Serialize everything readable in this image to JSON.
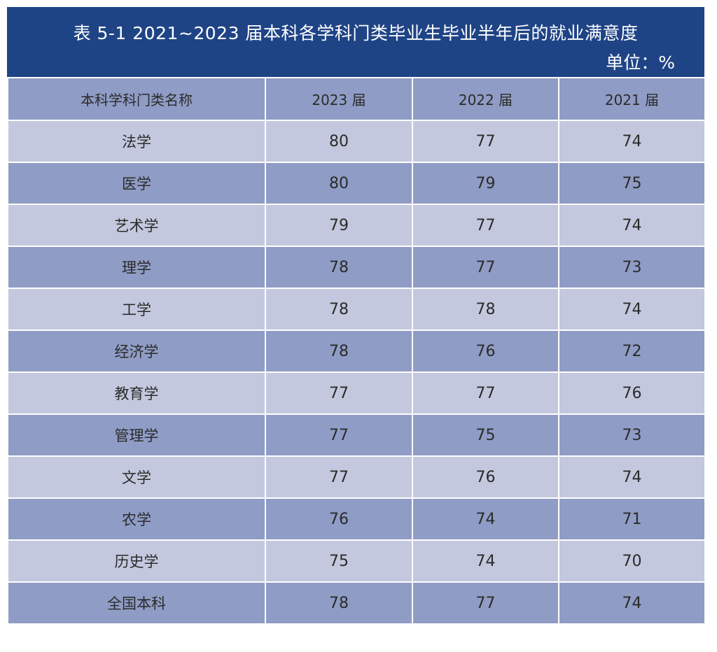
{
  "table": {
    "title": "表 5-1   2021~2023 届本科各学科门类毕业生毕业半年后的就业满意度",
    "unit": "单位：%",
    "headers": [
      "本科学科门类名称",
      "2023 届",
      "2022 届",
      "2021 届"
    ],
    "rows": [
      {
        "name": "法学",
        "y2023": "80",
        "y2022": "77",
        "y2021": "74"
      },
      {
        "name": "医学",
        "y2023": "80",
        "y2022": "79",
        "y2021": "75"
      },
      {
        "name": "艺术学",
        "y2023": "79",
        "y2022": "77",
        "y2021": "74"
      },
      {
        "name": "理学",
        "y2023": "78",
        "y2022": "77",
        "y2021": "73"
      },
      {
        "name": "工学",
        "y2023": "78",
        "y2022": "78",
        "y2021": "74"
      },
      {
        "name": "经济学",
        "y2023": "78",
        "y2022": "76",
        "y2021": "72"
      },
      {
        "name": "教育学",
        "y2023": "77",
        "y2022": "77",
        "y2021": "76"
      },
      {
        "name": "管理学",
        "y2023": "77",
        "y2022": "75",
        "y2021": "73"
      },
      {
        "name": "文学",
        "y2023": "77",
        "y2022": "76",
        "y2021": "74"
      },
      {
        "name": "农学",
        "y2023": "76",
        "y2022": "74",
        "y2021": "71"
      },
      {
        "name": "历史学",
        "y2023": "75",
        "y2022": "74",
        "y2021": "70"
      },
      {
        "name": "全国本科",
        "y2023": "78",
        "y2022": "77",
        "y2021": "74"
      }
    ]
  },
  "colors": {
    "title_bg": "#1f4486",
    "row_dark": "#8f9cc5",
    "row_light": "#c3c8de"
  }
}
